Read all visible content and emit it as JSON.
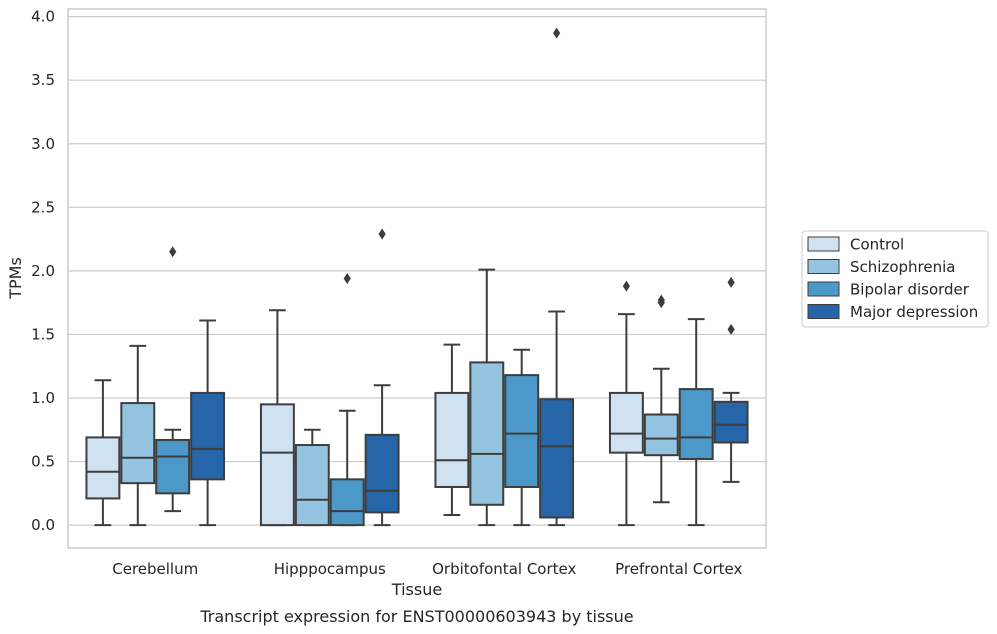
{
  "chart_data": {
    "type": "box",
    "caption": "Transcript expression for ENST00000603943 by tissue",
    "xlabel": "Tissue",
    "ylabel": "TPMs",
    "ylim": [
      -0.18,
      4.06
    ],
    "yticks": [
      0.0,
      0.5,
      1.0,
      1.5,
      2.0,
      2.5,
      3.0,
      3.5,
      4.0
    ],
    "ytick_labels": [
      "0.0",
      "0.5",
      "1.0",
      "1.5",
      "2.0",
      "2.5",
      "3.0",
      "3.5",
      "4.0"
    ],
    "grid": true,
    "legend_position": "right",
    "categories": [
      "Cerebellum",
      "Hipppocampus",
      "Orbitofontal Cortex",
      "Prefrontal Cortex"
    ],
    "series": [
      {
        "name": "Control",
        "color": "#d0e1f2",
        "boxes": [
          {
            "whisker_low": 0.0,
            "q1": 0.21,
            "median": 0.42,
            "q3": 0.69,
            "whisker_high": 1.14,
            "outliers": []
          },
          {
            "whisker_low": 0.0,
            "q1": 0.0,
            "median": 0.57,
            "q3": 0.95,
            "whisker_high": 1.69,
            "outliers": []
          },
          {
            "whisker_low": 0.08,
            "q1": 0.3,
            "median": 0.51,
            "q3": 1.04,
            "whisker_high": 1.42,
            "outliers": []
          },
          {
            "whisker_low": 0.0,
            "q1": 0.57,
            "median": 0.72,
            "q3": 1.04,
            "whisker_high": 1.66,
            "outliers": [
              1.88
            ]
          }
        ]
      },
      {
        "name": "Schizophrenia",
        "color": "#94c4df",
        "boxes": [
          {
            "whisker_low": 0.0,
            "q1": 0.33,
            "median": 0.53,
            "q3": 0.96,
            "whisker_high": 1.41,
            "outliers": []
          },
          {
            "whisker_low": 0.0,
            "q1": 0.0,
            "median": 0.2,
            "q3": 0.63,
            "whisker_high": 0.75,
            "outliers": []
          },
          {
            "whisker_low": 0.0,
            "q1": 0.16,
            "median": 0.56,
            "q3": 1.28,
            "whisker_high": 2.01,
            "outliers": []
          },
          {
            "whisker_low": 0.18,
            "q1": 0.55,
            "median": 0.68,
            "q3": 0.87,
            "whisker_high": 1.23,
            "outliers": [
              1.75,
              1.77
            ]
          }
        ]
      },
      {
        "name": "Bipolar disorder",
        "color": "#4b98c9",
        "boxes": [
          {
            "whisker_low": 0.11,
            "q1": 0.25,
            "median": 0.54,
            "q3": 0.67,
            "whisker_high": 0.75,
            "outliers": [
              2.15
            ]
          },
          {
            "whisker_low": 0.0,
            "q1": 0.0,
            "median": 0.11,
            "q3": 0.36,
            "whisker_high": 0.9,
            "outliers": [
              1.94
            ]
          },
          {
            "whisker_low": 0.0,
            "q1": 0.3,
            "median": 0.72,
            "q3": 1.18,
            "whisker_high": 1.38,
            "outliers": []
          },
          {
            "whisker_low": 0.0,
            "q1": 0.52,
            "median": 0.69,
            "q3": 1.07,
            "whisker_high": 1.62,
            "outliers": []
          }
        ]
      },
      {
        "name": "Major depression",
        "color": "#2565a8",
        "boxes": [
          {
            "whisker_low": 0.0,
            "q1": 0.36,
            "median": 0.6,
            "q3": 1.04,
            "whisker_high": 1.61,
            "outliers": []
          },
          {
            "whisker_low": 0.0,
            "q1": 0.1,
            "median": 0.27,
            "q3": 0.71,
            "whisker_high": 1.1,
            "outliers": [
              2.29
            ]
          },
          {
            "whisker_low": 0.0,
            "q1": 0.06,
            "median": 0.62,
            "q3": 0.99,
            "whisker_high": 1.68,
            "outliers": [
              3.87
            ]
          },
          {
            "whisker_low": 0.34,
            "q1": 0.65,
            "median": 0.79,
            "q3": 0.97,
            "whisker_high": 1.04,
            "outliers": [
              1.54,
              1.91
            ]
          }
        ]
      }
    ]
  }
}
